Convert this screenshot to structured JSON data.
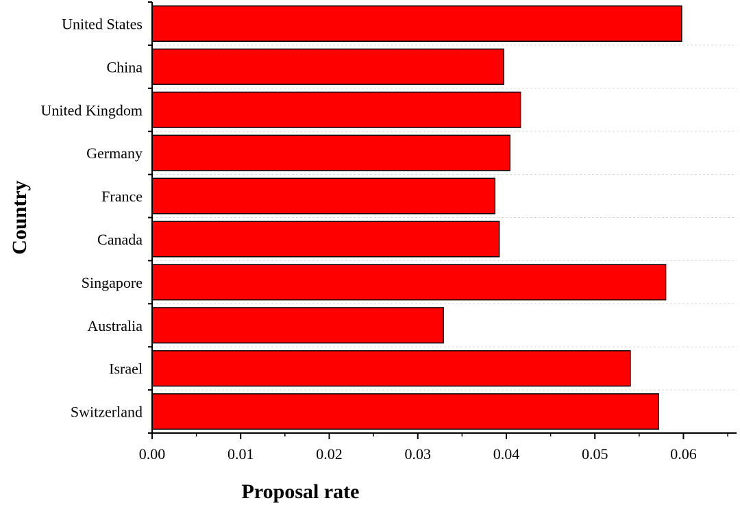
{
  "chart_data": {
    "type": "bar",
    "orientation": "horizontal",
    "title": "",
    "xlabel": "Proposal rate",
    "ylabel": "Country",
    "categories": [
      "United States",
      "China",
      "United Kingdom",
      "Germany",
      "France",
      "Canada",
      "Singapore",
      "Australia",
      "Israel",
      "Switzerland"
    ],
    "values": [
      0.0598,
      0.0397,
      0.0416,
      0.0404,
      0.0387,
      0.0392,
      0.058,
      0.0329,
      0.054,
      0.0572
    ],
    "xlim": [
      0.0,
      0.066
    ],
    "xticks": [
      "0.00",
      "0.01",
      "0.02",
      "0.03",
      "0.04",
      "0.05",
      "0.06"
    ],
    "bar_color": "#ff0000",
    "bar_edge_color": "#000000",
    "grid": "dashed horizontal, faint",
    "legend": "none"
  }
}
